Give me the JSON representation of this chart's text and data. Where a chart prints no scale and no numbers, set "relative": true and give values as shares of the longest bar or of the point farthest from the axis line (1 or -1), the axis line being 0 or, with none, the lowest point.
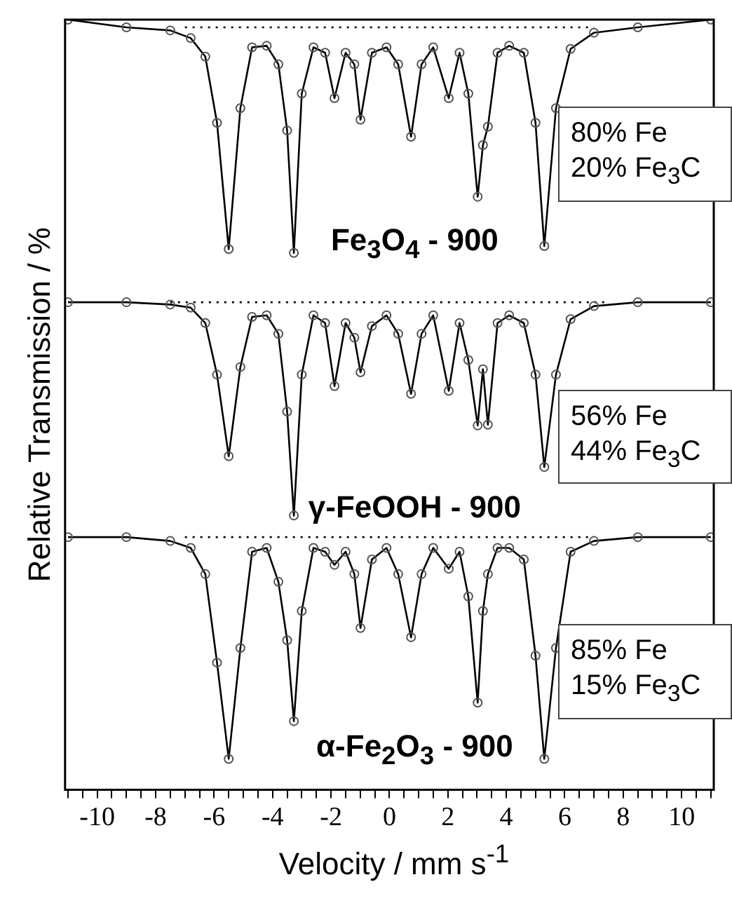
{
  "chart_data": {
    "type": "line",
    "relative": true,
    "xlabel": "Velocity / mm s$^{-1}$",
    "ylabel": "Relative Transmission / %",
    "xlim": [
      -11.1,
      11.1
    ],
    "xticks": [
      {
        "value": -11,
        "label": null
      },
      {
        "value": -10.5,
        "label": null
      },
      -10,
      {
        "value": -9.5,
        "label": null
      },
      {
        "value": -9,
        "label": null
      },
      {
        "value": -8.5,
        "label": null
      },
      -8,
      {
        "value": -7.5,
        "label": null
      },
      {
        "value": -7,
        "label": null
      },
      {
        "value": -6.5,
        "label": null
      },
      -6,
      {
        "value": -5.5,
        "label": null
      },
      {
        "value": -5,
        "label": null
      },
      {
        "value": -4.5,
        "label": null
      },
      -4,
      {
        "value": -3.5,
        "label": null
      },
      {
        "value": -3,
        "label": null
      },
      {
        "value": -2.5,
        "label": null
      },
      -2,
      {
        "value": -1.5,
        "label": null
      },
      {
        "value": -1,
        "label": null
      },
      {
        "value": -0.5,
        "label": null
      },
      0,
      {
        "value": 0.5,
        "label": null
      },
      {
        "value": 1,
        "label": null
      },
      {
        "value": 1.5,
        "label": null
      },
      2,
      {
        "value": 2.5,
        "label": null
      },
      {
        "value": 3,
        "label": null
      },
      {
        "value": 3.5,
        "label": null
      },
      4,
      {
        "value": 4.5,
        "label": null
      },
      {
        "value": 5,
        "label": null
      },
      {
        "value": 5.5,
        "label": null
      },
      6,
      {
        "value": 6.5,
        "label": null
      },
      {
        "value": 7,
        "label": null
      },
      {
        "value": 7.5,
        "label": null
      },
      8,
      {
        "value": 8.5,
        "label": null
      },
      {
        "value": 9,
        "label": null
      },
      {
        "value": 9.5,
        "label": null
      },
      10,
      {
        "value": 10.5,
        "label": null
      },
      {
        "value": 11,
        "label": null
      }
    ],
    "grid": false,
    "legend": false,
    "annotations": [
      "80% Fe\n20% Fe$_{3}$C",
      "56% Fe\n44% Fe$_{3}$C",
      "85% Fe\n15% Fe$_{3}$C"
    ],
    "series": [
      {
        "name": "Fe$_{3}$O$_{4}$ - 900",
        "type": "line",
        "color": "#000000",
        "marker": "circle",
        "x": [
          -11,
          -9,
          -7.5,
          -6.8,
          -6.3,
          -5.9,
          -5.5,
          -5.1,
          -4.7,
          -4.2,
          -3.8,
          -3.5,
          -3.27,
          -3.0,
          -2.6,
          -2.2,
          -1.88,
          -1.5,
          -1.2,
          -0.99,
          -0.6,
          -0.1,
          0.3,
          0.74,
          1.1,
          1.5,
          2.03,
          2.4,
          2.7,
          3.02,
          3.2,
          3.37,
          3.7,
          4.1,
          4.6,
          5.0,
          5.3,
          5.7,
          6.2,
          7,
          8.5,
          11
        ],
        "values": [
          1.0,
          0.99,
          0.986,
          0.976,
          0.952,
          0.866,
          0.702,
          0.885,
          0.964,
          0.966,
          0.942,
          0.856,
          0.697,
          0.904,
          0.964,
          0.957,
          0.898,
          0.957,
          0.942,
          0.87,
          0.957,
          0.964,
          0.942,
          0.848,
          0.942,
          0.964,
          0.898,
          0.957,
          0.904,
          0.77,
          0.837,
          0.861,
          0.957,
          0.966,
          0.957,
          0.866,
          0.706,
          0.885,
          0.962,
          0.983,
          0.99,
          1.0
        ]
      },
      {
        "type": "line",
        "color": "#000000",
        "marker": "none",
        "line_style": "dotted",
        "x": [
          -7,
          7
        ],
        "values": [
          0.99,
          0.99
        ]
      },
      {
        "name": "γ-FeOOH - 900",
        "type": "line",
        "color": "#000000",
        "marker": "circle",
        "x": [
          -11,
          -9,
          -7.5,
          -6.8,
          -6.3,
          -5.9,
          -5.5,
          -5.1,
          -4.7,
          -4.2,
          -3.8,
          -3.5,
          -3.27,
          -3.0,
          -2.6,
          -2.2,
          -1.88,
          -1.5,
          -1.2,
          -0.99,
          -0.6,
          -0.1,
          0.3,
          0.74,
          1.1,
          1.5,
          2.03,
          2.4,
          2.7,
          3.02,
          3.2,
          3.37,
          3.7,
          4.1,
          4.6,
          5.0,
          5.3,
          5.7,
          6.2,
          7,
          8.5,
          11
        ],
        "values": [
          0.633,
          0.633,
          0.63,
          0.626,
          0.606,
          0.539,
          0.433,
          0.549,
          0.614,
          0.616,
          0.592,
          0.491,
          0.356,
          0.539,
          0.616,
          0.606,
          0.524,
          0.606,
          0.587,
          0.542,
          0.602,
          0.616,
          0.592,
          0.514,
          0.592,
          0.616,
          0.518,
          0.606,
          0.558,
          0.473,
          0.546,
          0.474,
          0.606,
          0.616,
          0.606,
          0.539,
          0.419,
          0.539,
          0.611,
          0.628,
          0.633,
          0.633
        ]
      },
      {
        "type": "line",
        "color": "#000000",
        "marker": "none",
        "line_style": "dotted",
        "x": [
          -7.5,
          7.5
        ],
        "values": [
          0.633,
          0.633
        ]
      },
      {
        "name": "α-Fe$_{2}$O$_{3}$ - 900",
        "type": "line",
        "color": "#000000",
        "marker": "circle",
        "x": [
          -11,
          -9,
          -7.5,
          -6.8,
          -6.3,
          -5.9,
          -5.5,
          -5.1,
          -4.7,
          -4.2,
          -3.8,
          -3.5,
          -3.27,
          -3.0,
          -2.6,
          -2.2,
          -1.88,
          -1.5,
          -1.2,
          -0.99,
          -0.6,
          -0.1,
          0.3,
          0.74,
          1.1,
          1.5,
          2.03,
          2.4,
          2.7,
          3.02,
          3.2,
          3.37,
          3.7,
          4.1,
          4.6,
          5.0,
          5.3,
          5.7,
          6.2,
          7,
          8.5,
          11
        ],
        "values": [
          0.328,
          0.328,
          0.323,
          0.314,
          0.28,
          0.165,
          0.04,
          0.184,
          0.309,
          0.314,
          0.27,
          0.194,
          0.089,
          0.232,
          0.314,
          0.309,
          0.292,
          0.309,
          0.28,
          0.21,
          0.299,
          0.314,
          0.28,
          0.198,
          0.28,
          0.314,
          0.287,
          0.309,
          0.251,
          0.113,
          0.232,
          0.28,
          0.314,
          0.314,
          0.299,
          0.174,
          0.04,
          0.184,
          0.309,
          0.323,
          0.328,
          0.328
        ]
      },
      {
        "type": "line",
        "color": "#000000",
        "marker": "none",
        "line_style": "dotted",
        "x": [
          -7,
          7
        ],
        "values": [
          0.328,
          0.328
        ]
      }
    ]
  }
}
